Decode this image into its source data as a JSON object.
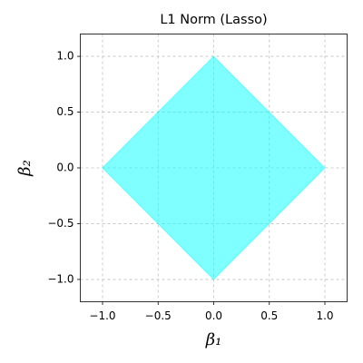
{
  "chart_data": {
    "type": "fill",
    "title": "L1 Norm (Lasso)",
    "xlabel": "β₁",
    "ylabel": "β₂",
    "x": [
      1,
      0,
      -1,
      0
    ],
    "y": [
      0,
      1,
      0,
      -1
    ],
    "color": "#00ffff",
    "alpha": 0.5,
    "xlim": [
      -1.2,
      1.2
    ],
    "ylim": [
      -1.2,
      1.2
    ],
    "xticks": [
      {
        "value": -1,
        "label": "−1.0"
      },
      {
        "value": -0.5,
        "label": "−0.5"
      },
      {
        "value": 0,
        "label": "0.0"
      },
      0.5,
      {
        "value": 1,
        "label": "1.0"
      }
    ],
    "yticks": [
      {
        "value": -1,
        "label": "−1.0"
      },
      {
        "value": -0.5,
        "label": "−0.5"
      },
      {
        "value": 0,
        "label": "0.0"
      },
      0.5,
      {
        "value": 1,
        "label": "1.0"
      }
    ],
    "grid": true
  }
}
